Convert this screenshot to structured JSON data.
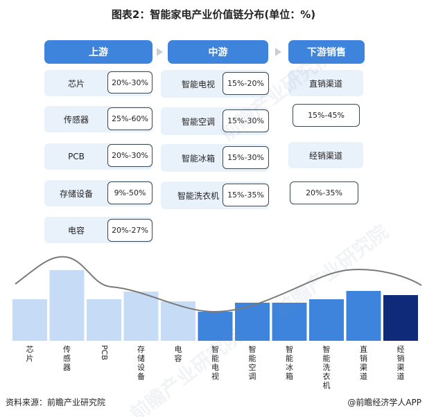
{
  "title": "图表2：智能家电产业价值链分布(单位：%)",
  "columns": {
    "upstream": {
      "header": "上游",
      "items": [
        {
          "label": "芯片",
          "range": "20%-30%"
        },
        {
          "label": "传感器",
          "range": "25%-60%"
        },
        {
          "label": "PCB",
          "range": "20%-30%"
        },
        {
          "label": "存储设备",
          "range": "9%-50%"
        },
        {
          "label": "电容",
          "range": "20%-27%"
        }
      ]
    },
    "midstream": {
      "header": "中游",
      "items": [
        {
          "label": "智能电视",
          "range": "15%-20%"
        },
        {
          "label": "智能空调",
          "range": "15%-30%"
        },
        {
          "label": "智能冰箱",
          "range": "15%-30%"
        },
        {
          "label": "智能洗衣机",
          "range": "15%-35%"
        }
      ]
    },
    "downstream": {
      "header": "下游销售",
      "items": [
        {
          "label": "直销渠道",
          "range": "15%-45%"
        },
        {
          "label": "经销渠道",
          "range": "20%-35%"
        }
      ]
    }
  },
  "chart_data": {
    "type": "bar",
    "categories": [
      "芯片",
      "传感器",
      "PCB",
      "存储设备",
      "电容",
      "智能电视",
      "智能空调",
      "智能冰箱",
      "智能洗衣机",
      "直销渠道",
      "经销渠道"
    ],
    "values": [
      60,
      102,
      60,
      71,
      57,
      42,
      55,
      55,
      60,
      72,
      66
    ],
    "colors": [
      "#c6dcf6",
      "#c6dcf6",
      "#c6dcf6",
      "#c6dcf6",
      "#c6dcf6",
      "#3f84dc",
      "#3f84dc",
      "#3f84dc",
      "#3f84dc",
      "#3f84dc",
      "#0f2a78"
    ],
    "curve_color": "#7a7a7a"
  },
  "footer": {
    "source": "资料来源：前瞻产业研究院",
    "brand": "@前瞻经济学人APP"
  },
  "watermark": "前瞻产业研究院"
}
